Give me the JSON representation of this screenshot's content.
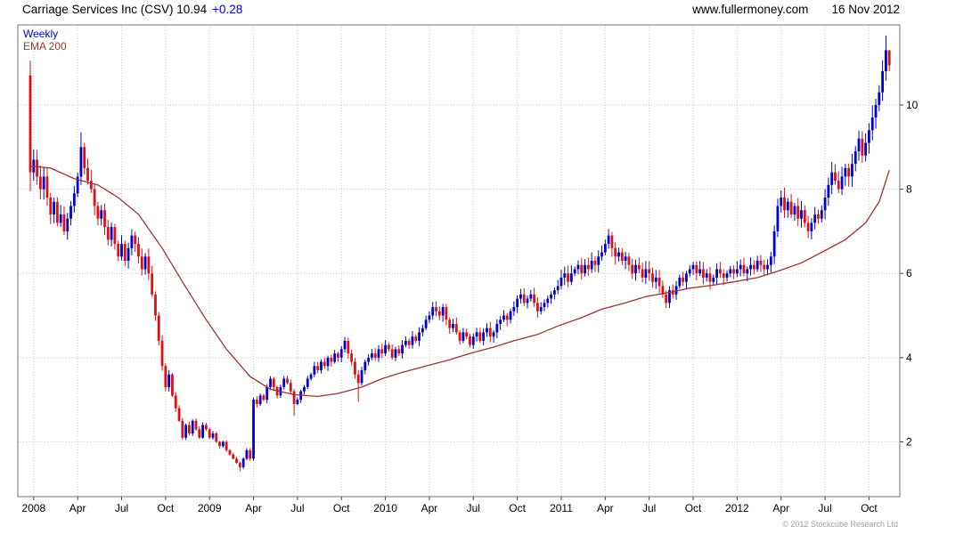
{
  "header": {
    "title": "Carriage Services Inc (CSV) 10.94",
    "change": "+0.28",
    "website": "www.fullermoney.com",
    "date": "16 Nov 2012"
  },
  "legend": {
    "timeframe": "Weekly",
    "indicator": "EMA 200"
  },
  "footer": {
    "copyright": "© 2012 Stockcube Research Ltd"
  },
  "colors": {
    "up": "#0000cc",
    "down": "#dd1111",
    "ema": "#993632",
    "grid": "#cccccc",
    "border": "#707070",
    "tick": "#404040",
    "axis_text": "#000000"
  },
  "chart_data": {
    "type": "candlestick",
    "timeframe": "weekly",
    "title": "Carriage Services Inc (CSV)",
    "last_price": 10.94,
    "last_change": 0.28,
    "ylim": [
      0.7,
      11.9
    ],
    "yticks": [
      2,
      4,
      6,
      8,
      10
    ],
    "xticks": [
      [
        "2008",
        1
      ],
      [
        "Apr",
        14
      ],
      [
        "Jul",
        27
      ],
      [
        "Oct",
        40
      ],
      [
        "2009",
        53
      ],
      [
        "Apr",
        66
      ],
      [
        "Jul",
        79
      ],
      [
        "Oct",
        92
      ],
      [
        "2010",
        105
      ],
      [
        "Apr",
        118
      ],
      [
        "Jul",
        131
      ],
      [
        "Oct",
        144
      ],
      [
        "2011",
        157
      ],
      [
        "Apr",
        170
      ],
      [
        "Jul",
        183
      ],
      [
        "Oct",
        196
      ],
      [
        "2012",
        209
      ],
      [
        "Apr",
        222
      ],
      [
        "Jul",
        235
      ],
      [
        "Oct",
        248
      ]
    ],
    "first_open": 10.7,
    "weekly_closes": [
      8.4,
      8.7,
      8.3,
      8.0,
      8.3,
      7.8,
      7.4,
      7.7,
      7.2,
      7.4,
      7.0,
      7.3,
      7.6,
      7.9,
      8.3,
      9.0,
      8.5,
      8.2,
      8.0,
      7.6,
      7.3,
      7.5,
      7.1,
      6.8,
      7.1,
      6.7,
      6.4,
      6.7,
      6.3,
      6.6,
      6.9,
      6.7,
      6.4,
      6.1,
      6.4,
      6.0,
      5.5,
      5.0,
      4.4,
      3.8,
      3.3,
      3.6,
      3.1,
      2.8,
      2.5,
      2.1,
      2.4,
      2.2,
      2.5,
      2.3,
      2.1,
      2.4,
      2.3,
      2.1,
      2.2,
      2.0,
      1.9,
      2.0,
      1.8,
      1.7,
      1.6,
      1.5,
      1.4,
      1.6,
      1.8,
      1.6,
      3.0,
      2.9,
      3.1,
      3.0,
      3.3,
      3.5,
      3.3,
      3.1,
      3.3,
      3.5,
      3.4,
      3.2,
      2.9,
      3.0,
      3.2,
      3.3,
      3.5,
      3.6,
      3.8,
      3.7,
      3.9,
      3.8,
      4.0,
      3.9,
      4.1,
      4.0,
      4.2,
      4.4,
      4.1,
      3.9,
      3.6,
      3.4,
      3.7,
      3.9,
      4.0,
      4.1,
      4.0,
      4.2,
      4.1,
      4.3,
      4.2,
      4.0,
      4.2,
      4.1,
      4.3,
      4.4,
      4.3,
      4.5,
      4.4,
      4.6,
      4.7,
      4.9,
      5.0,
      5.2,
      5.1,
      5.0,
      5.2,
      4.9,
      4.7,
      4.8,
      4.6,
      4.4,
      4.6,
      4.5,
      4.3,
      4.5,
      4.6,
      4.4,
      4.6,
      4.7,
      4.5,
      4.6,
      4.8,
      4.9,
      5.0,
      4.9,
      5.1,
      5.2,
      5.4,
      5.5,
      5.3,
      5.4,
      5.5,
      5.3,
      5.1,
      5.2,
      5.3,
      5.4,
      5.5,
      5.6,
      5.7,
      5.9,
      6.0,
      5.8,
      6.0,
      6.1,
      6.2,
      6.0,
      6.2,
      6.1,
      6.3,
      6.2,
      6.4,
      6.5,
      6.7,
      6.9,
      6.6,
      6.4,
      6.5,
      6.3,
      6.4,
      6.2,
      6.0,
      6.2,
      6.1,
      5.9,
      6.1,
      6.0,
      5.8,
      5.9,
      5.7,
      5.5,
      5.3,
      5.6,
      5.5,
      5.7,
      5.9,
      5.8,
      6.0,
      6.1,
      6.2,
      6.0,
      6.1,
      5.9,
      6.0,
      5.8,
      5.9,
      6.1,
      6.0,
      5.9,
      6.0,
      6.1,
      6.0,
      6.1,
      6.2,
      6.0,
      6.1,
      6.2,
      6.1,
      6.3,
      6.2,
      6.1,
      6.2,
      6.4,
      7.0,
      7.6,
      7.8,
      7.5,
      7.7,
      7.4,
      7.6,
      7.3,
      7.5,
      7.2,
      7.0,
      7.2,
      7.4,
      7.3,
      7.5,
      7.8,
      8.1,
      8.4,
      8.2,
      8.0,
      8.3,
      8.5,
      8.3,
      8.6,
      8.9,
      9.2,
      8.8,
      9.1,
      9.4,
      9.7,
      10.0,
      10.3,
      10.8,
      11.3,
      10.94
    ],
    "overrides": {
      "0": {
        "o": 10.7,
        "h": 11.05,
        "l": 7.95
      },
      "15": {
        "h": 9.35
      },
      "62": {
        "l": 1.3
      },
      "66": {
        "h": 3.05,
        "l": 1.55
      },
      "78": {
        "l": 2.62
      },
      "97": {
        "l": 2.95
      },
      "171": {
        "h": 7.05
      },
      "253": {
        "h": 11.65
      },
      "254": {
        "h": 11.15
      }
    },
    "ema200": [
      [
        0,
        8.55
      ],
      [
        6,
        8.5
      ],
      [
        13,
        8.25
      ],
      [
        20,
        8.1
      ],
      [
        26,
        7.8
      ],
      [
        32,
        7.4
      ],
      [
        39,
        6.6
      ],
      [
        45,
        5.8
      ],
      [
        52,
        4.9
      ],
      [
        58,
        4.2
      ],
      [
        65,
        3.55
      ],
      [
        71,
        3.25
      ],
      [
        78,
        3.12
      ],
      [
        85,
        3.08
      ],
      [
        91,
        3.15
      ],
      [
        98,
        3.3
      ],
      [
        104,
        3.5
      ],
      [
        110,
        3.65
      ],
      [
        117,
        3.8
      ],
      [
        124,
        3.95
      ],
      [
        130,
        4.1
      ],
      [
        137,
        4.25
      ],
      [
        143,
        4.4
      ],
      [
        150,
        4.55
      ],
      [
        156,
        4.75
      ],
      [
        163,
        4.95
      ],
      [
        169,
        5.15
      ],
      [
        176,
        5.3
      ],
      [
        182,
        5.45
      ],
      [
        189,
        5.55
      ],
      [
        195,
        5.65
      ],
      [
        202,
        5.72
      ],
      [
        208,
        5.8
      ],
      [
        215,
        5.9
      ],
      [
        221,
        6.05
      ],
      [
        228,
        6.25
      ],
      [
        234,
        6.5
      ],
      [
        241,
        6.8
      ],
      [
        247,
        7.2
      ],
      [
        251,
        7.7
      ],
      [
        254,
        8.45
      ]
    ]
  }
}
